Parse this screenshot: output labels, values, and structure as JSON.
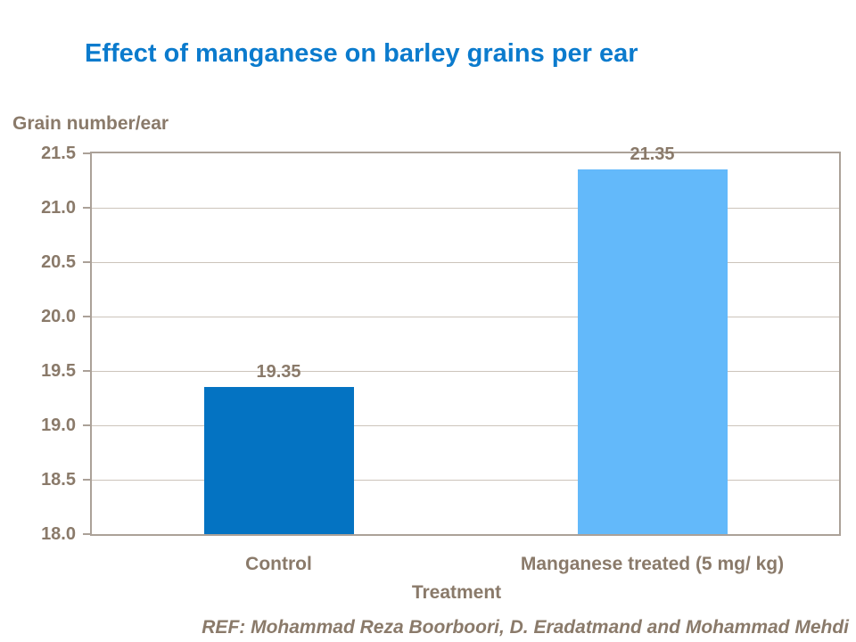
{
  "footer": {
    "reference": "REF: Mohammad Reza Boorboori, D. Eradatmand and Mohammad Mehdi"
  },
  "colors": {
    "title_text": "#0B7BCD",
    "axis_text": "#8A7A6A",
    "axis_line": "#ABA198",
    "gridline": "#CCC4BB",
    "background": "#FFFFFF"
  },
  "chart_data": {
    "type": "bar",
    "title": "Effect of manganese on barley grains per ear",
    "categories": [
      "Control",
      "Manganese treated (5 mg/ kg)"
    ],
    "values": [
      19.35,
      21.35
    ],
    "data_labels": [
      "19.35",
      "21.35"
    ],
    "bar_colors": [
      "#0473C2",
      "#63B9FA"
    ],
    "xlabel": "Treatment",
    "ylabel": "Grain number/ear",
    "ylim": [
      18.0,
      21.5
    ],
    "ytick_step": 0.5,
    "yticks": [
      21.5,
      21.0,
      20.5,
      20.0,
      19.5,
      19.0,
      18.5,
      18.0
    ],
    "ytick_decimals": 1,
    "grid": "horizontal",
    "legend": "none"
  }
}
